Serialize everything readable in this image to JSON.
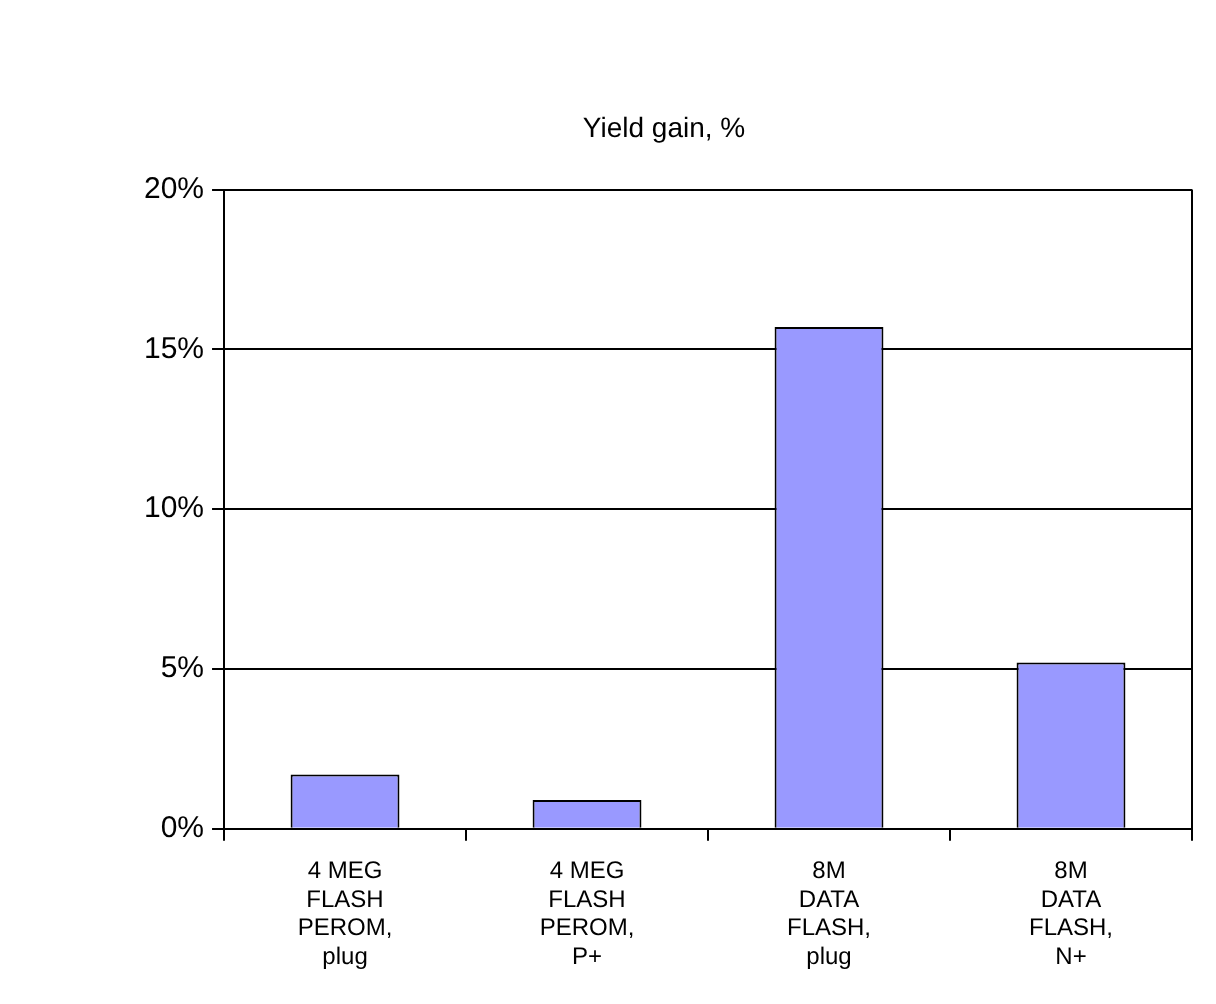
{
  "chart_data": {
    "type": "bar",
    "title": "Yield gain, %",
    "categories": [
      "4 MEG FLASH PEROM, plug",
      "4 MEG FLASH PEROM, P+",
      "8M DATA FLASH, plug",
      "8M DATA FLASH, N+"
    ],
    "values": [
      0.017,
      0.009,
      0.157,
      0.052
    ],
    "color": "#9999ff",
    "ylim": [
      0,
      0.2
    ],
    "yticks": [
      {
        "value": 0,
        "label": "0%"
      },
      {
        "value": 0.05,
        "label": "5%"
      },
      {
        "value": 0.1,
        "label": "10%"
      },
      {
        "value": 0.15,
        "label": "15%"
      },
      {
        "value": 0.2,
        "label": "20%"
      }
    ],
    "grid": "y",
    "legend": false
  }
}
